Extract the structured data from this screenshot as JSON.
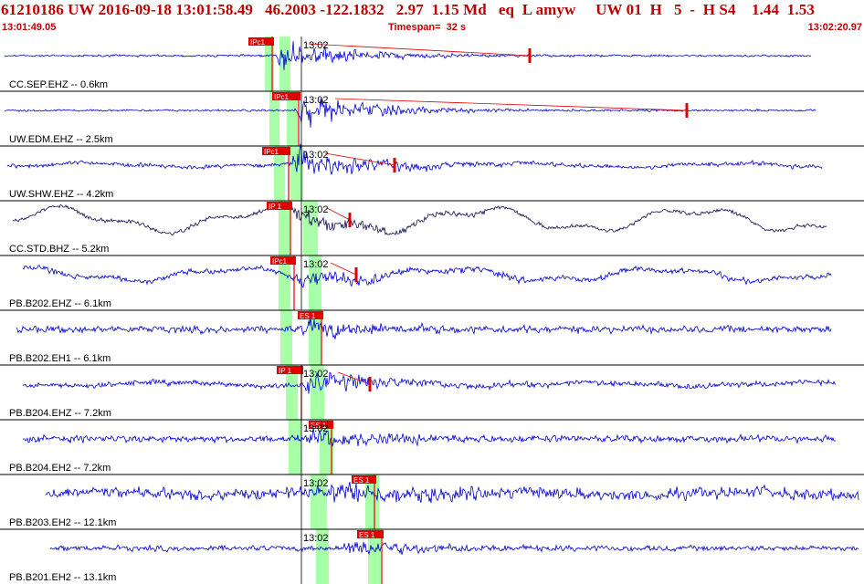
{
  "header": {
    "title": "61210186 UW 2016-09-18 13:01:58.49   46.2003 -122.1832   2.97  1.15 Md   eq  L amyw     UW 01  H   5  -  H S4    1.44  1.53",
    "start_time": "13:01:49.05",
    "timespan_label": "Timespan=  32 s",
    "end_time": "13:02:20.97"
  },
  "colors": {
    "title": "#c00000",
    "trace": "#0000d0",
    "trace_dark": "#101050",
    "pick": "#e00000",
    "window": "#a8ffa8",
    "divider": "#000000"
  },
  "traces": [
    {
      "label": "CC.SEP.EHZ -- 0.6km",
      "minute": "13:02",
      "pick": "IPc1"
    },
    {
      "label": "UW.EDM.EHZ -- 2.5km",
      "minute": "13:02",
      "pick": "IPc1"
    },
    {
      "label": "UW.SHW.EHZ -- 4.2km",
      "minute": "13:02",
      "pick": "IPc1"
    },
    {
      "label": "CC.STD.BHZ -- 5.2km",
      "minute": "13:02",
      "pick": "IP 1"
    },
    {
      "label": "PB.B202.EHZ -- 6.1km",
      "minute": "13:02",
      "pick": "IPc1"
    },
    {
      "label": "PB.B202.EH1 -- 6.1km",
      "minute": "",
      "pick": "ES 1"
    },
    {
      "label": "PB.B204.EHZ -- 7.2km",
      "minute": "13:02",
      "pick": "IP 1"
    },
    {
      "label": "PB.B204.EH2 -- 7.2km",
      "minute": "13:02",
      "pick": "ES 1"
    },
    {
      "label": "PB.B203.EH2 -- 12.1km",
      "minute": "13:02",
      "pick": "ES 1"
    },
    {
      "label": "PB.B201.EH2 -- 13.1km",
      "minute": "13:02",
      "pick": "ES 1"
    }
  ]
}
